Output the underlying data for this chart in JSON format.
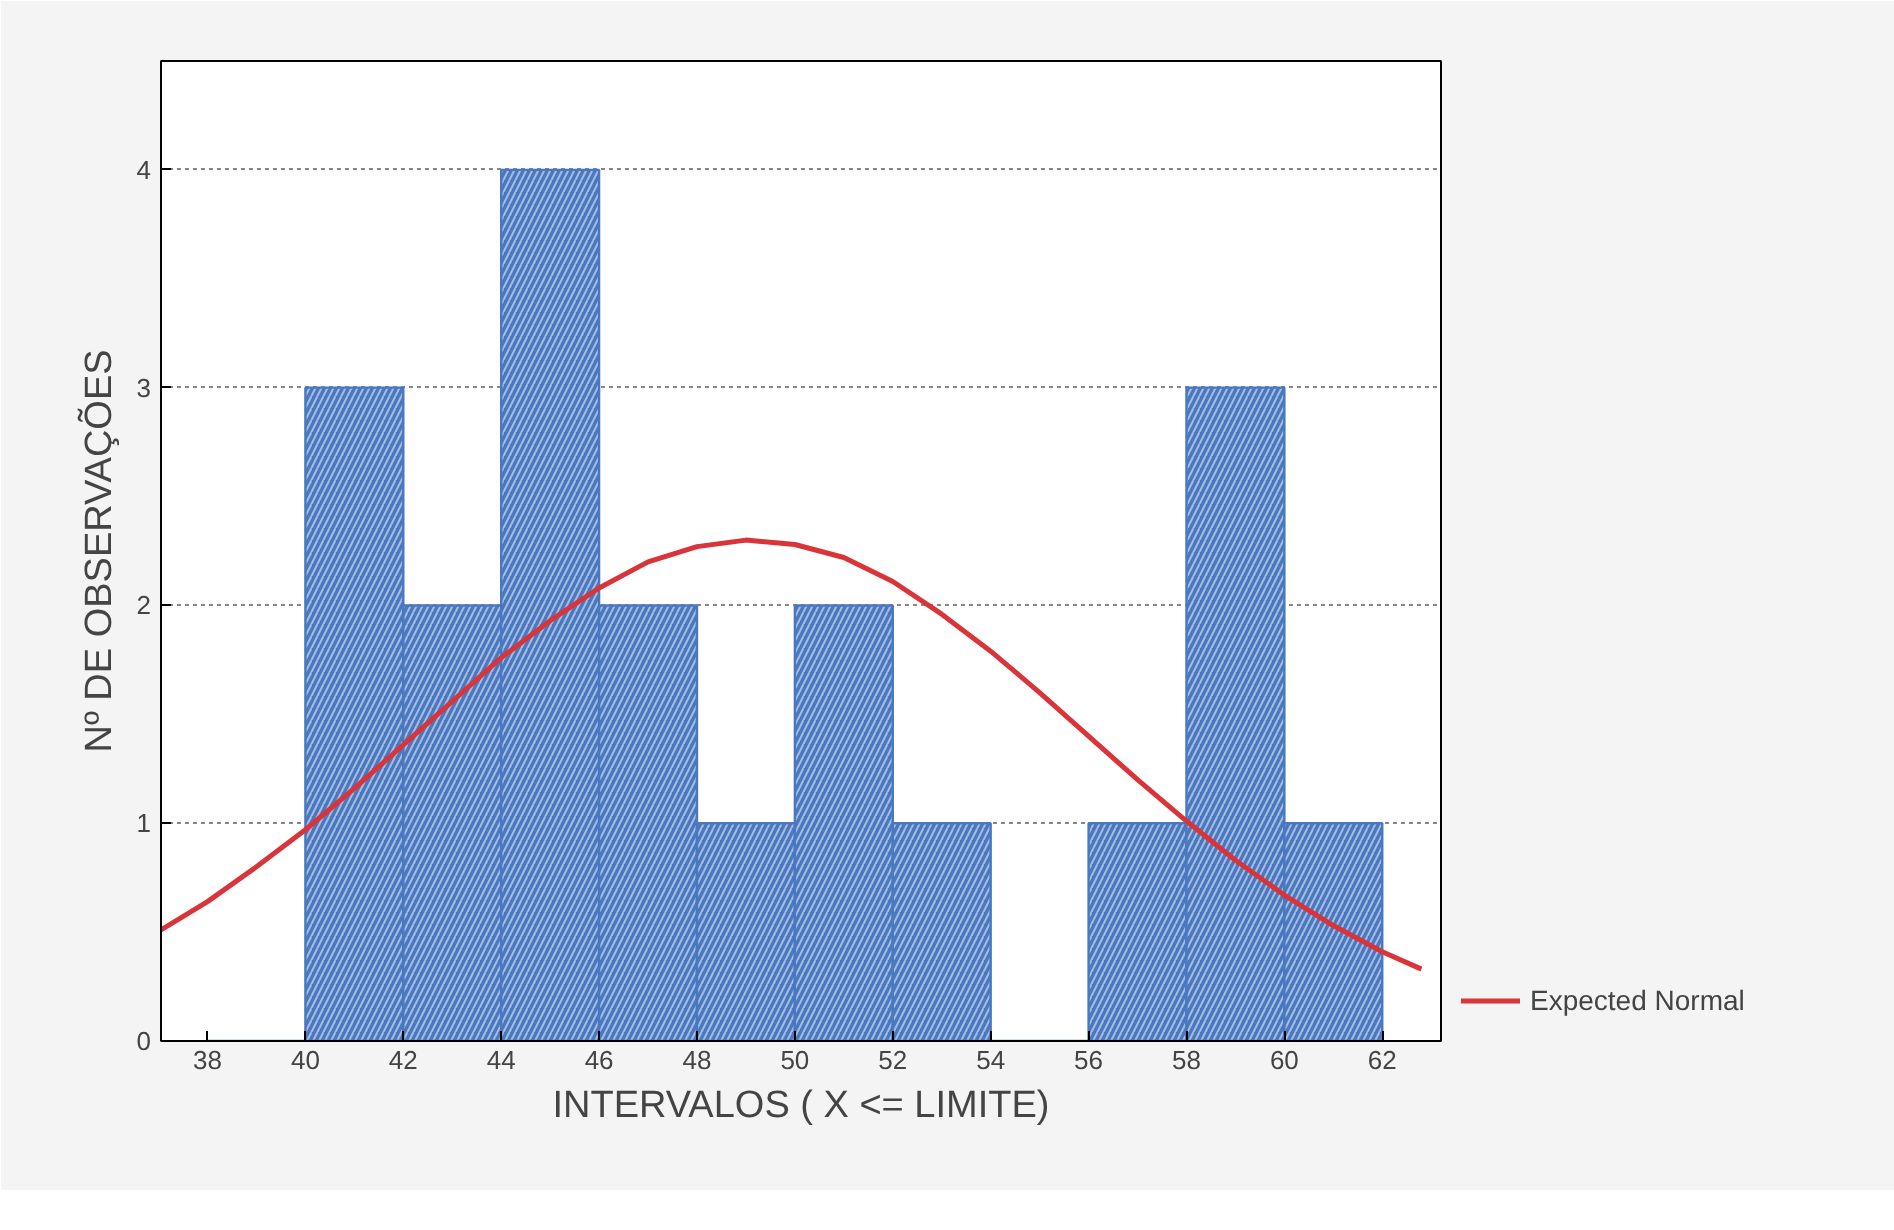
{
  "chart_data": {
    "type": "histogram",
    "xlabel": "INTERVALOS ( X <= LIMITE)",
    "ylabel": "Nº DE OBSERVAÇÕES",
    "bins": [
      38,
      40,
      42,
      44,
      46,
      48,
      50,
      52,
      54,
      56,
      58,
      60,
      62
    ],
    "values": [
      0,
      3,
      2,
      4,
      2,
      1,
      2,
      1,
      0,
      1,
      3,
      1
    ],
    "color": "#4a78c0",
    "series": [
      {
        "name": "Expected Normal",
        "type": "line",
        "color": "#d8343a",
        "x": [
          37.05,
          38,
          39,
          40,
          41,
          42,
          43,
          44,
          45,
          46,
          47,
          48,
          49,
          50,
          51,
          52,
          53,
          54,
          55,
          56,
          57,
          58,
          59,
          60,
          61,
          62,
          62.8
        ],
        "values": [
          0.51,
          0.64,
          0.8,
          0.97,
          1.16,
          1.36,
          1.56,
          1.76,
          1.93,
          2.08,
          2.2,
          2.27,
          2.3,
          2.28,
          2.22,
          2.11,
          1.96,
          1.79,
          1.6,
          1.4,
          1.2,
          1.01,
          0.83,
          0.67,
          0.53,
          0.41,
          0.33
        ]
      }
    ],
    "xlim": [
      37.05,
      63.2
    ],
    "ylim": [
      0,
      4.5
    ],
    "xticks": [
      38,
      40,
      42,
      44,
      46,
      48,
      50,
      52,
      54,
      56,
      58,
      60,
      62
    ],
    "yticks": [
      0,
      1,
      2,
      3,
      4
    ],
    "grid": "y",
    "legend": "right"
  }
}
